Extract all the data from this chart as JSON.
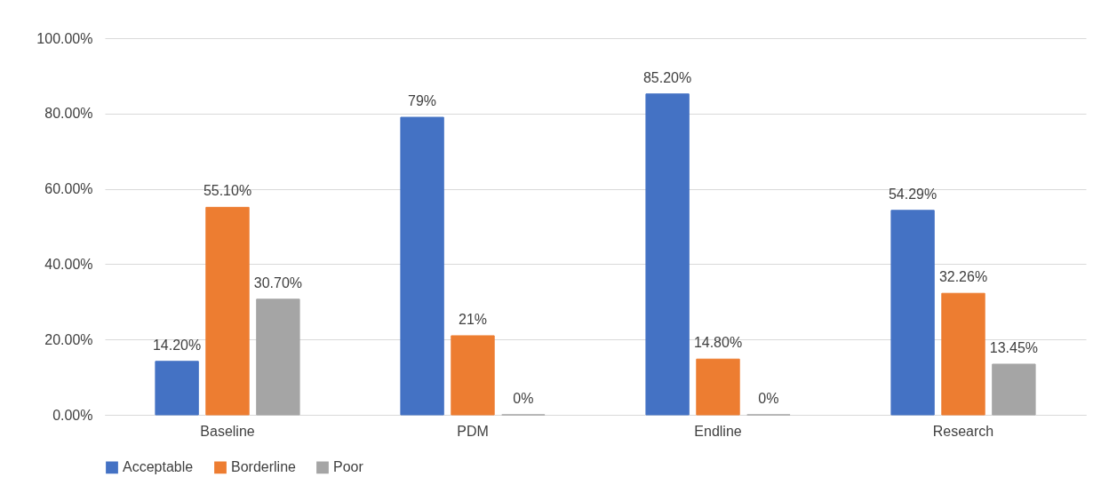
{
  "chart_data": {
    "type": "bar",
    "categories": [
      "Baseline",
      "PDM",
      "Endline",
      "Research"
    ],
    "series": [
      {
        "name": "Acceptable",
        "color": "#4472c4",
        "values": [
          14.2,
          79,
          85.2,
          54.29
        ],
        "value_labels": [
          "14.20%",
          "79%",
          "85.20%",
          "54.29%"
        ]
      },
      {
        "name": "Borderline",
        "color": "#ed7d31",
        "values": [
          55.1,
          21,
          14.8,
          32.26
        ],
        "value_labels": [
          "55.10%",
          "21%",
          "14.80%",
          "32.26%"
        ]
      },
      {
        "name": "Poor",
        "color": "#a5a5a5",
        "values": [
          30.7,
          0,
          0,
          13.45
        ],
        "value_labels": [
          "30.70%",
          "0%",
          "0%",
          "13.45%"
        ]
      }
    ],
    "ylim": [
      0,
      100
    ],
    "yticks": [
      {
        "value": 0,
        "label": "0.00%"
      },
      {
        "value": 20,
        "label": "20.00%"
      },
      {
        "value": 40,
        "label": "40.00%"
      },
      {
        "value": 60,
        "label": "60.00%"
      },
      {
        "value": 80,
        "label": "80.00%"
      },
      {
        "value": 100,
        "label": "100.00%"
      }
    ],
    "grid": "y",
    "legend": "bottom"
  }
}
